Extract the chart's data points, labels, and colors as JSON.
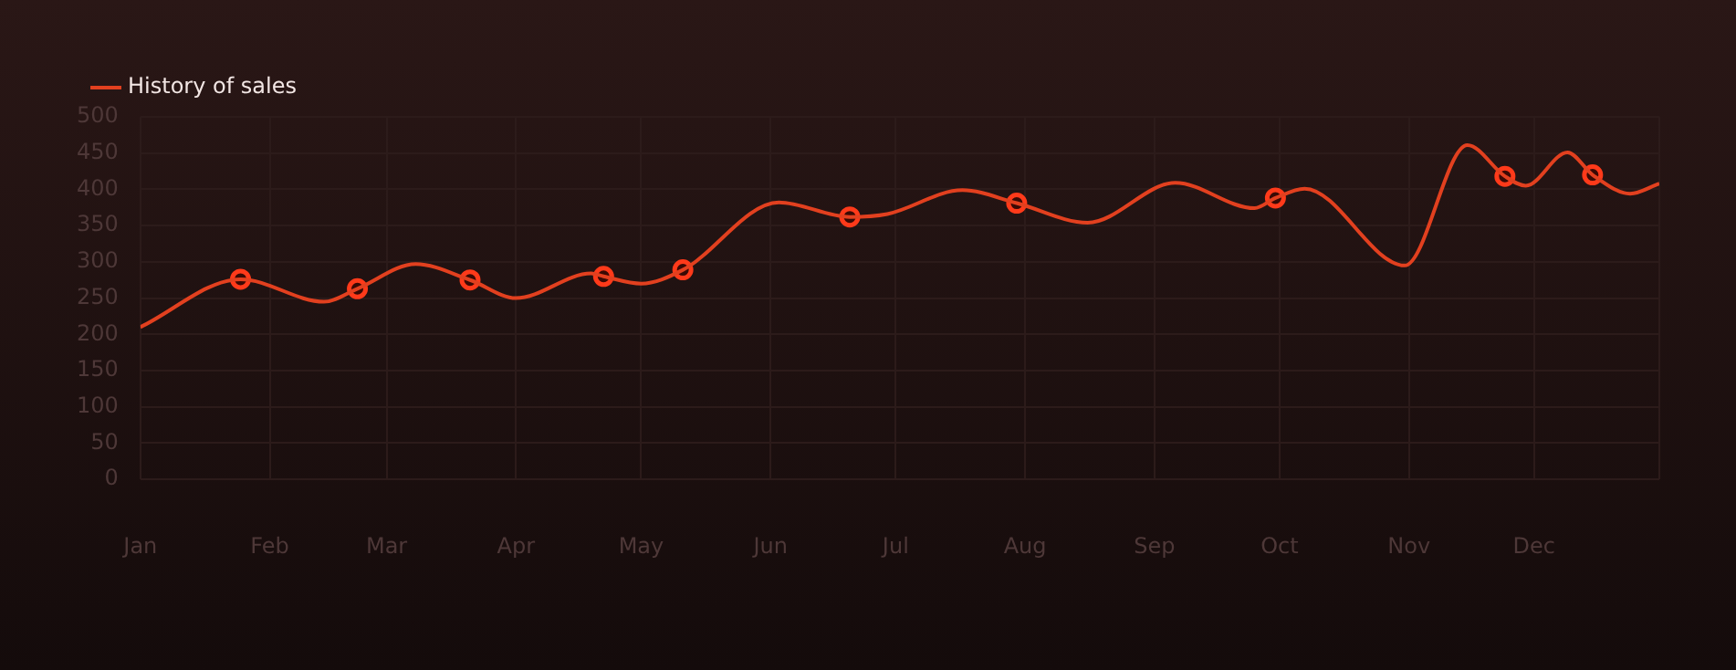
{
  "chart_data": {
    "type": "line",
    "legend": "top left",
    "grid": true,
    "xlim": [
      "--01-01",
      "--12-31"
    ],
    "xticks": [
      {
        "value": "--01-01",
        "label": "Jan"
      },
      {
        "value": "--02-01",
        "label": "Feb"
      },
      {
        "value": "--03-01",
        "label": "Mar"
      },
      {
        "value": "--04-01",
        "label": "Apr"
      },
      {
        "value": "--05-01",
        "label": "May"
      },
      {
        "value": "--06-01",
        "label": "Jun"
      },
      {
        "value": "--07-01",
        "label": "Jul"
      },
      {
        "value": "--08-01",
        "label": "Aug"
      },
      {
        "value": "--09-01",
        "label": "Sep"
      },
      {
        "value": "--10-01",
        "label": "Oct"
      },
      {
        "value": "--11-01",
        "label": "Nov"
      },
      {
        "value": "--12-01",
        "label": "Dec"
      },
      {
        "value": "--12-31",
        "label": null
      }
    ],
    "ylim": [
      0,
      500
    ],
    "yticks": [
      0,
      50,
      100,
      150,
      200,
      250,
      300,
      350,
      400,
      450,
      500
    ],
    "series": [
      {
        "name": "History of sales",
        "marker": "none",
        "color": "#e2401f",
        "x": [
          "--01-01",
          "--01-25",
          "--02-14",
          "--02-22",
          "--03-08",
          "--03-21",
          "--04-01",
          "--04-19",
          "--04-22",
          "--05-01",
          "--05-11",
          "--06-03",
          "--06-20",
          "--06-29",
          "--07-17",
          "--07-30",
          "--08-16",
          "--09-06",
          "--09-25",
          "--09-30",
          "--10-07",
          "--10-31",
          "--11-15",
          "--11-24",
          "--11-29",
          "--12-09",
          "--12-15",
          "--12-24",
          "--12-31"
        ],
        "values": [
          210,
          276,
          245,
          263,
          297,
          275,
          250,
          284,
          280,
          270,
          289,
          382,
          362,
          366,
          399,
          381,
          354,
          409,
          374,
          388,
          401,
          295,
          461,
          418,
          405,
          451,
          420,
          394,
          408
        ]
      },
      {
        "type": "scatter",
        "marker": "circle",
        "color": "#ff3a1a",
        "x": [
          "--01-25",
          "--02-22",
          "--03-21",
          "--04-22",
          "--05-11",
          "--06-20",
          "--07-30",
          "--09-30",
          "--11-24",
          "--12-15"
        ],
        "values": [
          276,
          263,
          275,
          280,
          289,
          362,
          381,
          388,
          418,
          420
        ]
      }
    ]
  }
}
